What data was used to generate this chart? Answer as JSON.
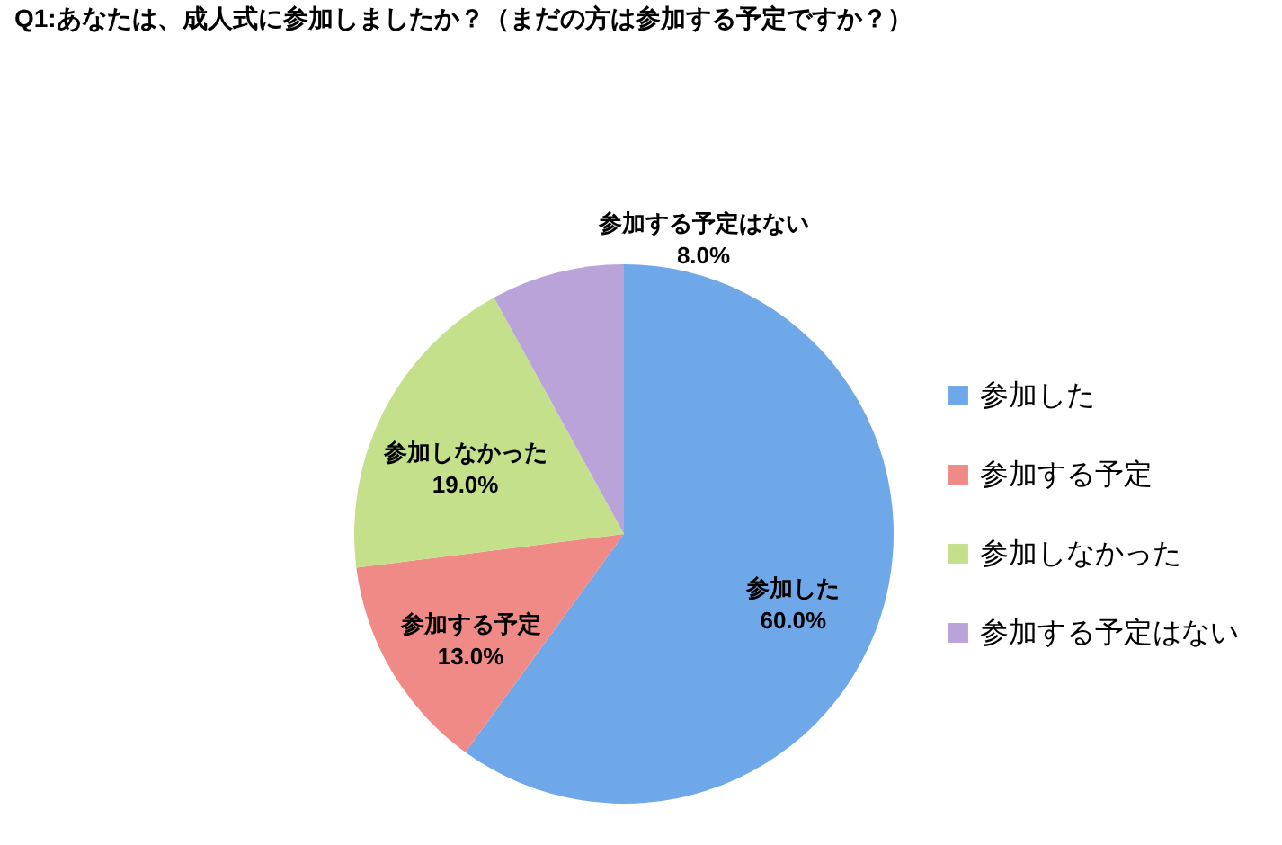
{
  "chart_data": {
    "type": "pie",
    "title": "Q1:あなたは、成人式に参加しましたか？（まだの方は参加する予定ですか？）",
    "categories": [
      "参加した",
      "参加する予定",
      "参加しなかった",
      "参加する予定はない"
    ],
    "values": [
      60,
      13,
      19,
      8
    ],
    "value_labels": [
      "60.0%",
      "13.0%",
      "19.0%",
      "8.0%"
    ],
    "colors": [
      "#6fa8e8",
      "#f08a86",
      "#c4e08a",
      "#b9a3d9"
    ],
    "legend": "right"
  }
}
